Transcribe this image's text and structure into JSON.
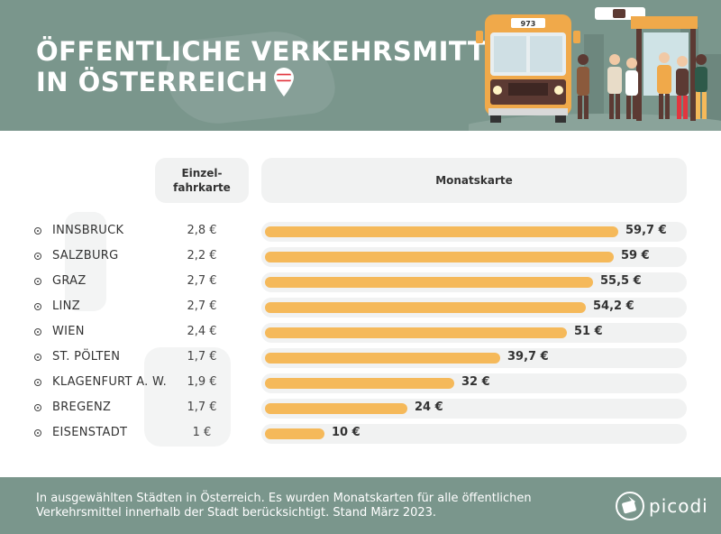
{
  "header": {
    "title": "ÖFFENTLICHE VERKEHRSMITTEL\nIN ÖSTERREICH",
    "bus_number": "973"
  },
  "columns": {
    "single": "Einzel-\nfahrkarte",
    "monthly": "Monatskarte"
  },
  "chart_data": {
    "type": "bar",
    "orientation": "horizontal",
    "categories": [
      "INNSBRUCK",
      "SALZBURG",
      "GRAZ",
      "LINZ",
      "WIEN",
      "ST. PÖLTEN",
      "KLAGENFURT A. W.",
      "BREGENZ",
      "EISENSTADT"
    ],
    "series": [
      {
        "name": "Monatskarte",
        "values": [
          59.7,
          59,
          55.5,
          54.2,
          51,
          39.7,
          32,
          24,
          10
        ]
      },
      {
        "name": "Einzelfahrkarte",
        "values": [
          2.8,
          2.2,
          2.7,
          2.7,
          2.4,
          1.7,
          1.9,
          1.7,
          1
        ]
      }
    ],
    "single_labels": [
      "2,8 €",
      "2,2 €",
      "2,7 €",
      "2,7 €",
      "2,4 €",
      "1,7 €",
      "1,9 €",
      "1,7 €",
      "1 €"
    ],
    "monthly_labels": [
      "59,7 €",
      "59 €",
      "55,5 €",
      "54,2 €",
      "51 €",
      "39,7 €",
      "32 €",
      "24 €",
      "10 €"
    ],
    "xlim": [
      0,
      59.7
    ],
    "bar_color": "#f5b95a"
  },
  "footer": {
    "note": "In ausgewählten Städten in Österreich. Es wurden Monatskarten für alle öffentlichen\nVerkehrsmittel innerhalb der Stadt berücksichtigt. Stand März 2023.",
    "brand": "picodi"
  },
  "colors": {
    "header_bg": "#7a968c",
    "accent": "#f5b95a",
    "track": "#f1f2f2",
    "flag_red": "#e2363f"
  }
}
